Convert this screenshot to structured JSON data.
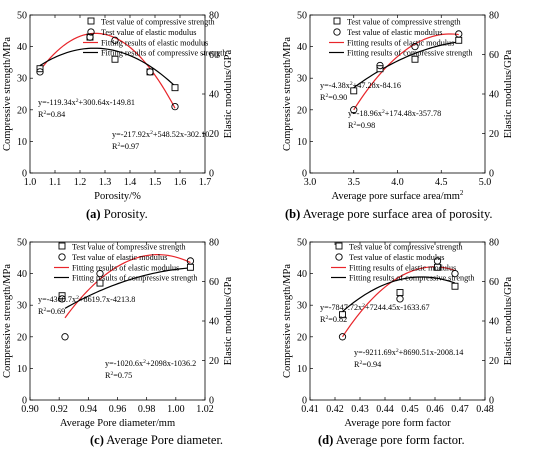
{
  "legend_labels": {
    "test_cs": "Test value of compressive strength",
    "test_em": "Test value of elastic modulus",
    "fit_em": "Fitting results of elastic modulus",
    "fit_cs": "Fitting results of compressive strength"
  },
  "colors": {
    "em_fit": "#e8262b",
    "cs_fit": "#000000"
  },
  "captions": [
    {
      "letter": "(a)",
      "text": " Porosity."
    },
    {
      "letter": "(b)",
      "text": " Average pore surface area of porosity."
    },
    {
      "letter": "(c)",
      "text": " Average Pore diameter."
    },
    {
      "letter": "(d)",
      "text": " Average pore form factor."
    }
  ],
  "chart_data": [
    {
      "type": "scatter",
      "legend_labels": [
        "Test value of compressive strength",
        "Test value of elastic modulus",
        "Fitting results of elastic modulus",
        "Fitting results of compressive strength"
      ],
      "legend_variant": "a",
      "xlabel": "Porosity/%",
      "ylabel_left": "Compressive strength/MPa",
      "ylabel_right": "Elastic modulus/GPa",
      "xlim": [
        1.0,
        1.7
      ],
      "xticks": [
        "1.0",
        "1.1",
        "1.2",
        "1.3",
        "1.4",
        "1.5",
        "1.6",
        "1.7"
      ],
      "ylim_left": [
        0,
        50
      ],
      "yticks_left": [
        "0",
        "10",
        "20",
        "30",
        "40",
        "50"
      ],
      "ylim_right": [
        0,
        80
      ],
      "yticks_right": [
        "0",
        "20",
        "40",
        "60",
        "80"
      ],
      "series": [
        {
          "name": "Test value of compressive strength",
          "kind": "square",
          "x": [
            1.04,
            1.24,
            1.34,
            1.48,
            1.58
          ],
          "y": [
            33,
            43,
            36,
            32,
            27
          ]
        },
        {
          "name": "Test value of elastic modulus",
          "kind": "circle",
          "x": [
            1.04,
            1.24,
            1.34,
            1.48,
            1.58
          ],
          "y": [
            32,
            43,
            42,
            32,
            21
          ]
        },
        {
          "name": "Fitting results of elastic modulus",
          "kind": "fit",
          "x_from": 1.04,
          "x_to": 1.58,
          "y_from": 32.5,
          "y_peak": 44.2,
          "x_peak": 1.26,
          "y_to": 20.5
        },
        {
          "name": "Fitting results of compressive strength",
          "kind": "fit",
          "x_from": 1.04,
          "x_to": 1.58,
          "y_from": 34,
          "y_peak": 39.5,
          "x_peak": 1.26,
          "y_to": 27.5
        }
      ],
      "annotations": [
        "y=-119.34x²+300.64x-149.81",
        "R²=0.84",
        "y=-217.92x²+548.52x-302.10",
        "R²=0.97"
      ]
    },
    {
      "type": "scatter",
      "legend_labels": [
        "Test value of compressive strength",
        "Test value of elastic modulus",
        "Fitting results of elastic modulus",
        "Fitting results of compressive strength"
      ],
      "legend_variant": "b",
      "xlabel": "Average pore surface area/mm²",
      "ylabel_left": "Compressive strength/MPa",
      "ylabel_right": "Elastic modulus/GPa",
      "xlim": [
        3.0,
        5.0
      ],
      "xticks": [
        "3.0",
        "3.5",
        "4.0",
        "4.5",
        "5.0"
      ],
      "ylim_left": [
        0,
        50
      ],
      "yticks_left": [
        "0",
        "10",
        "20",
        "30",
        "40",
        "50"
      ],
      "ylim_right": [
        0,
        80
      ],
      "yticks_right": [
        "0",
        "20",
        "40",
        "60",
        "80"
      ],
      "series": [
        {
          "name": "Test value of compressive strength",
          "kind": "square",
          "x": [
            3.5,
            3.8,
            4.2,
            4.7
          ],
          "y": [
            26,
            33,
            36,
            42
          ]
        },
        {
          "name": "Test value of elastic modulus",
          "kind": "circle",
          "x": [
            3.5,
            3.8,
            4.2,
            4.7
          ],
          "y": [
            20,
            34,
            40,
            44
          ]
        },
        {
          "name": "Fitting results of elastic modulus",
          "kind": "fit",
          "x_from": 3.5,
          "x_to": 4.7,
          "y_from": 20,
          "y_peak": 44,
          "x_peak": 4.6,
          "y_to": 43.8
        },
        {
          "name": "Fitting results of compressive strength",
          "kind": "fit",
          "x_from": 3.5,
          "x_to": 4.7,
          "y_from": 27,
          "y_peak": 42,
          "x_peak": 4.9,
          "y_to": 41.5
        }
      ],
      "annotations": [
        "y=-4.38x²+47.28x-84.16",
        "R²=0.90",
        "y=-18.96x²+174.48x-357.78",
        "R²=0.98"
      ]
    },
    {
      "type": "scatter",
      "legend_labels": [
        "Test value of  compressive strength",
        "Test value of elastic modulus",
        "Fitting results of elastic modulus",
        "Fitting results of compressive strength"
      ],
      "legend_variant": "c",
      "xlabel": "Average Pore diameter/mm",
      "ylabel_left": "Compressive strength/MPa",
      "ylabel_right": "Elastic modulus/GPa",
      "xlim": [
        0.9,
        1.02
      ],
      "xticks": [
        "0.90",
        "0.92",
        "0.94",
        "0.96",
        "0.98",
        "1.00",
        "1.02"
      ],
      "ylim_left": [
        0,
        50
      ],
      "yticks_left": [
        "0",
        "10",
        "20",
        "30",
        "40",
        "50"
      ],
      "ylim_right": [
        0,
        80
      ],
      "yticks_right": [
        "0",
        "20",
        "40",
        "60",
        "80"
      ],
      "series": [
        {
          "name": "Test value of  compressive strength",
          "kind": "square",
          "x": [
            0.922,
            0.948,
            1.01
          ],
          "y": [
            33,
            37,
            42
          ]
        },
        {
          "name": "Test value of elastic modulus",
          "kind": "circle",
          "x": [
            0.922,
            0.924,
            0.948,
            1.01
          ],
          "y": [
            32,
            20,
            40,
            44
          ]
        },
        {
          "name": "Fitting results of elastic modulus",
          "kind": "fit",
          "x_from": 0.924,
          "x_to": 1.01,
          "y_from": 26,
          "y_peak": 46,
          "x_peak": 0.987,
          "y_to": 43.5
        },
        {
          "name": "Fitting results of compressive strength",
          "kind": "fit",
          "x_from": 0.924,
          "x_to": 1.01,
          "y_from": 29,
          "y_peak": 42,
          "x_peak": 1.02,
          "y_to": 41.8
        }
      ],
      "annotations": [
        "y=-4360.7x²+8619.7x-4213.8",
        "R²=0.69",
        "y=-1020.6x²+2098x-1036.2",
        "R²=0.75"
      ]
    },
    {
      "type": "scatter",
      "legend_labels": [
        "Test value of  compressive strength",
        "Test value of elastic modulus",
        "Fitting results of elastic modulus",
        "Fitting results of compressive strength"
      ],
      "legend_variant": "d",
      "xlabel": "Average pore form factor",
      "ylabel_left": "Compressive strength/MPa",
      "ylabel_right": "Elastic modulus/GPa",
      "xlim": [
        0.41,
        0.48
      ],
      "xticks": [
        "0.41",
        "0.42",
        "0.43",
        "0.44",
        "0.45",
        "0.46",
        "0.47",
        "0.48"
      ],
      "ylim_left": [
        0,
        50
      ],
      "yticks_left": [
        "0",
        "10",
        "20",
        "30",
        "40",
        "50"
      ],
      "ylim_right": [
        0,
        80
      ],
      "yticks_right": [
        "0",
        "20",
        "40",
        "60",
        "80"
      ],
      "series": [
        {
          "name": "Test value of  compressive strength",
          "kind": "square",
          "x": [
            0.423,
            0.446,
            0.461,
            0.468
          ],
          "y": [
            27,
            34,
            42,
            36
          ]
        },
        {
          "name": "Test value of elastic modulus",
          "kind": "circle",
          "x": [
            0.423,
            0.446,
            0.461,
            0.468
          ],
          "y": [
            20,
            32,
            44,
            40
          ]
        },
        {
          "name": "Fitting results of elastic modulus",
          "kind": "fit",
          "x_from": 0.423,
          "x_to": 0.468,
          "y_from": 20,
          "y_peak": 42,
          "x_peak": 0.4625,
          "y_to": 41
        },
        {
          "name": "Fitting results of compressive strength",
          "kind": "fit",
          "x_from": 0.423,
          "x_to": 0.468,
          "y_from": 28,
          "y_peak": 38.5,
          "x_peak": 0.461,
          "y_to": 37
        }
      ],
      "annotations": [
        "y=-7847.72x²+7244.45x-1633.67",
        "R²=0.82",
        "y=-9211.69x²+8690.51x-2008.14",
        "R²=0.94"
      ]
    }
  ]
}
